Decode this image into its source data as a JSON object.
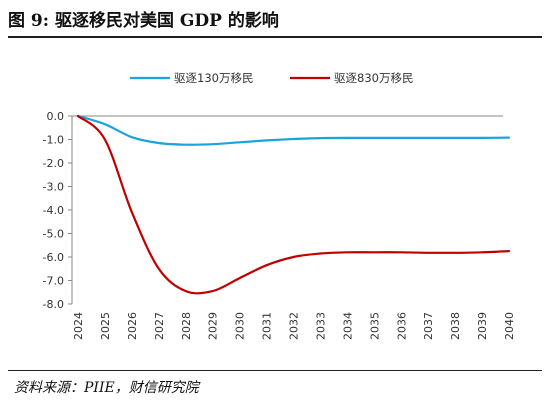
{
  "figure": {
    "title": "图 9:  驱逐移民对美国 GDP 的影响",
    "source": "资料来源：PIIE，财信研究院"
  },
  "chart_data": {
    "type": "line",
    "title": "",
    "xlabel": "",
    "ylabel": "",
    "x": [
      2024,
      2025,
      2026,
      2027,
      2028,
      2029,
      2030,
      2031,
      2032,
      2033,
      2034,
      2035,
      2036,
      2037,
      2038,
      2039,
      2040
    ],
    "ylim": [
      -8.0,
      0.0
    ],
    "yticks": [
      0.0,
      -1.0,
      -2.0,
      -3.0,
      -4.0,
      -5.0,
      -6.0,
      -7.0,
      -8.0
    ],
    "ytick_labels": [
      "0.0",
      "-1.0",
      "-2.0",
      "-3.0",
      "-4.0",
      "-5.0",
      "-6.0",
      "-7.0",
      "-8.0"
    ],
    "xtick_labels": [
      "2024",
      "2025",
      "2026",
      "2027",
      "2028",
      "2029",
      "2030",
      "2031",
      "2032",
      "2033",
      "2034",
      "2035",
      "2036",
      "2037",
      "2038",
      "2039",
      "2040"
    ],
    "grid": false,
    "legend_position": "top",
    "series": [
      {
        "name": "驱逐130万移民",
        "color": "#1aa3dc",
        "values": [
          0.0,
          -0.35,
          -0.9,
          -1.15,
          -1.22,
          -1.2,
          -1.12,
          -1.04,
          -0.98,
          -0.94,
          -0.93,
          -0.93,
          -0.93,
          -0.93,
          -0.93,
          -0.93,
          -0.92
        ]
      },
      {
        "name": "驱逐830万移民",
        "color": "#c00000",
        "values": [
          0.0,
          -1.0,
          -4.1,
          -6.5,
          -7.45,
          -7.45,
          -6.9,
          -6.35,
          -6.0,
          -5.85,
          -5.8,
          -5.8,
          -5.8,
          -5.82,
          -5.82,
          -5.8,
          -5.75
        ]
      }
    ]
  }
}
